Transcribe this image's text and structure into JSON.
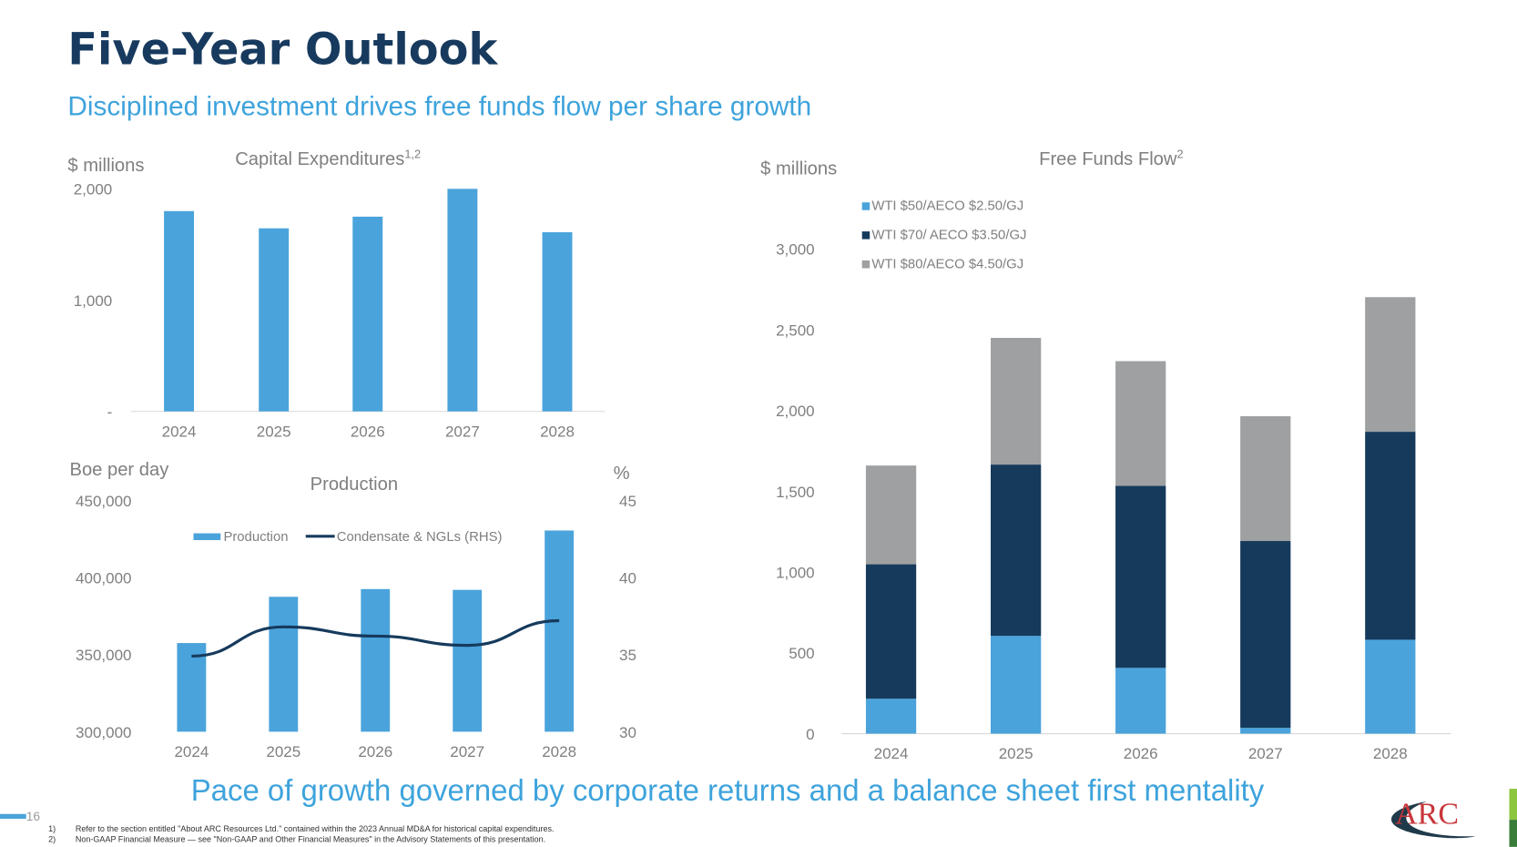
{
  "title": "Five-Year Outlook",
  "subtitle": "Disciplined investment drives free funds flow per share growth",
  "bottom_statement": "Pace of growth governed by corporate returns and a balance sheet first mentality",
  "page_number": "16",
  "footnotes": [
    {
      "num": "1)",
      "text": "Refer to the section entitled \"About ARC Resources Ltd.\" contained within the 2023 Annual MD&A for historical capital expenditures."
    },
    {
      "num": "2)",
      "text": "Non-GAAP Financial Measure — see \"Non-GAAP and Other Financial Measures\" in the Advisory Statements of this presentation."
    }
  ],
  "logo": "ARC",
  "colors": {
    "title": "#173a5e",
    "accent": "#3ea3dc",
    "light_blue": "#4aa3db",
    "navy": "#163a5c",
    "gray": "#9ea0a1",
    "green": "#8cc63f"
  },
  "chart_data": [
    {
      "type": "bar",
      "title": "Capital Expenditures",
      "title_superscript": "1,2",
      "ylabel": "$ millions",
      "categories": [
        "2024",
        "2025",
        "2026",
        "2027",
        "2028"
      ],
      "values": [
        1800,
        1645,
        1750,
        2000,
        1610
      ],
      "ylim": [
        0,
        2000
      ],
      "yticks": [
        "-",
        "1,000",
        "2,000"
      ],
      "grid": false
    },
    {
      "type": "bar",
      "title": "Production",
      "ylabel": "Boe per day",
      "ylabel_right": "%",
      "categories": [
        "2024",
        "2025",
        "2026",
        "2027",
        "2028"
      ],
      "ylim": [
        300000,
        450000
      ],
      "yticks": [
        "300,000",
        "350,000",
        "400,000",
        "450,000"
      ],
      "ylim_right": [
        30,
        45
      ],
      "yticks_right": [
        "30",
        "35",
        "40",
        "45"
      ],
      "legend_placement": "top",
      "series": [
        {
          "name": "Production",
          "type": "bar",
          "values": [
            357500,
            387500,
            392500,
            392000,
            430500
          ]
        },
        {
          "name": "Condensate & NGLs (RHS)",
          "type": "line",
          "axis": "right",
          "values": [
            34.9,
            36.8,
            36.2,
            35.6,
            37.2
          ]
        }
      ],
      "grid": false
    },
    {
      "type": "bar",
      "stacked": true,
      "title": "Free Funds Flow",
      "title_superscript": "2",
      "ylabel": "$ millions",
      "categories": [
        "2024",
        "2025",
        "2026",
        "2027",
        "2028"
      ],
      "ylim": [
        0,
        3000
      ],
      "yticks": [
        "0",
        "500",
        "1,000",
        "1,500",
        "2,000",
        "2,500",
        "3,000"
      ],
      "legend_placement": "top-left",
      "series": [
        {
          "name": "WTI $50/AECO $2.50/GJ",
          "values": [
            216,
            605,
            407,
            36,
            581
          ]
        },
        {
          "name": "WTI $70/ AECO $3.50/GJ",
          "values": [
            832,
            1060,
            1126,
            1156,
            1287
          ]
        },
        {
          "name": "WTI $80/AECO $4.50/GJ",
          "values": [
            611,
            784,
            772,
            772,
            833
          ]
        }
      ],
      "grid": false
    }
  ]
}
